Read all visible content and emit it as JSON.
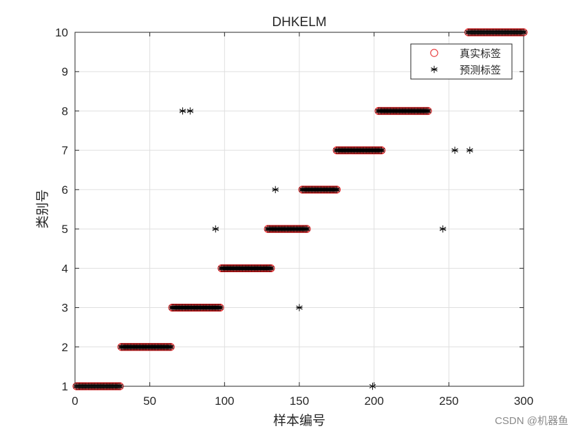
{
  "watermark": "CSDN @机器鱼",
  "chart_data": {
    "type": "scatter",
    "title": "DHKELM",
    "xlabel": "样本编号",
    "ylabel": "类别号",
    "xlim": [
      0,
      300
    ],
    "ylim": [
      1,
      10
    ],
    "xticks": [
      0,
      50,
      100,
      150,
      200,
      250,
      300
    ],
    "yticks": [
      1,
      2,
      3,
      4,
      5,
      6,
      7,
      8,
      9,
      10
    ],
    "grid": true,
    "legend_position": "top-right",
    "class_ranges": [
      {
        "label": 1,
        "x_start": 1,
        "x_end": 30
      },
      {
        "label": 2,
        "x_start": 31,
        "x_end": 64
      },
      {
        "label": 3,
        "x_start": 65,
        "x_end": 97
      },
      {
        "label": 4,
        "x_start": 98,
        "x_end": 131
      },
      {
        "label": 5,
        "x_start": 129,
        "x_end": 155
      },
      {
        "label": 6,
        "x_start": 152,
        "x_end": 175
      },
      {
        "label": 7,
        "x_start": 175,
        "x_end": 205
      },
      {
        "label": 8,
        "x_start": 203,
        "x_end": 236
      },
      {
        "label": 10,
        "x_start": 263,
        "x_end": 300
      }
    ],
    "misclassified": [
      {
        "x": 72,
        "y": 8
      },
      {
        "x": 77,
        "y": 8
      },
      {
        "x": 94,
        "y": 5
      },
      {
        "x": 134,
        "y": 6
      },
      {
        "x": 150,
        "y": 3
      },
      {
        "x": 199,
        "y": 1
      },
      {
        "x": 246,
        "y": 5
      },
      {
        "x": 254,
        "y": 7
      },
      {
        "x": 264,
        "y": 7
      }
    ],
    "series": [
      {
        "name": "真实标签",
        "marker": "circle",
        "color": "#e41a1c"
      },
      {
        "name": "预测标签",
        "marker": "asterisk",
        "color": "#000000"
      }
    ]
  }
}
